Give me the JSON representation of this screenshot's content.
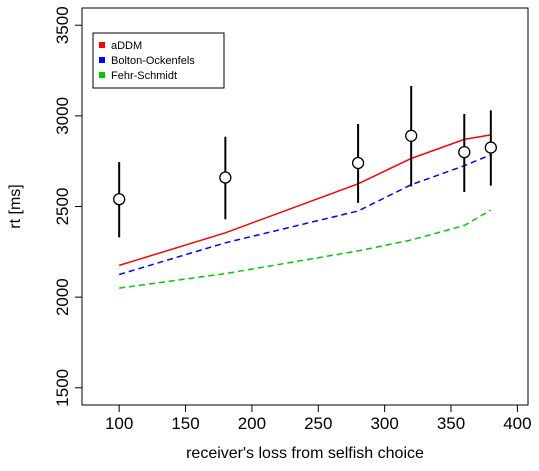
{
  "chart_data": {
    "type": "line",
    "xlabel": "receiver's loss from selfish choice",
    "ylabel": "rt [ms]",
    "xlim": [
      72,
      408
    ],
    "ylim": [
      1405,
      3595
    ],
    "x_ticks": [
      "100",
      "150",
      "200",
      "250",
      "300",
      "350",
      "400"
    ],
    "y_ticks": [
      "1500",
      "2000",
      "2500",
      "3000",
      "3500"
    ],
    "grid": false,
    "legend_position": "top-left",
    "x": [
      100,
      180,
      280,
      320,
      360,
      380
    ],
    "observed": {
      "mean": [
        2540,
        2660,
        2740,
        2890,
        2800,
        2825
      ],
      "lower": [
        2330,
        2430,
        2520,
        2610,
        2580,
        2615
      ],
      "upper": [
        2745,
        2885,
        2955,
        3165,
        3010,
        3030
      ]
    },
    "series": [
      {
        "name": "aDDM",
        "color": "#ff0000",
        "dash": "solid",
        "values": [
          2175,
          2355,
          2625,
          2765,
          2870,
          2895
        ]
      },
      {
        "name": "Bolton-Ockenfels",
        "color": "#0000ff",
        "dash": "dashed",
        "values": [
          2125,
          2300,
          2475,
          2620,
          2725,
          2785
        ]
      },
      {
        "name": "Fehr-Schmidt",
        "color": "#00c800",
        "dash": "dashed",
        "values": [
          2050,
          2130,
          2255,
          2315,
          2395,
          2480
        ]
      }
    ]
  }
}
